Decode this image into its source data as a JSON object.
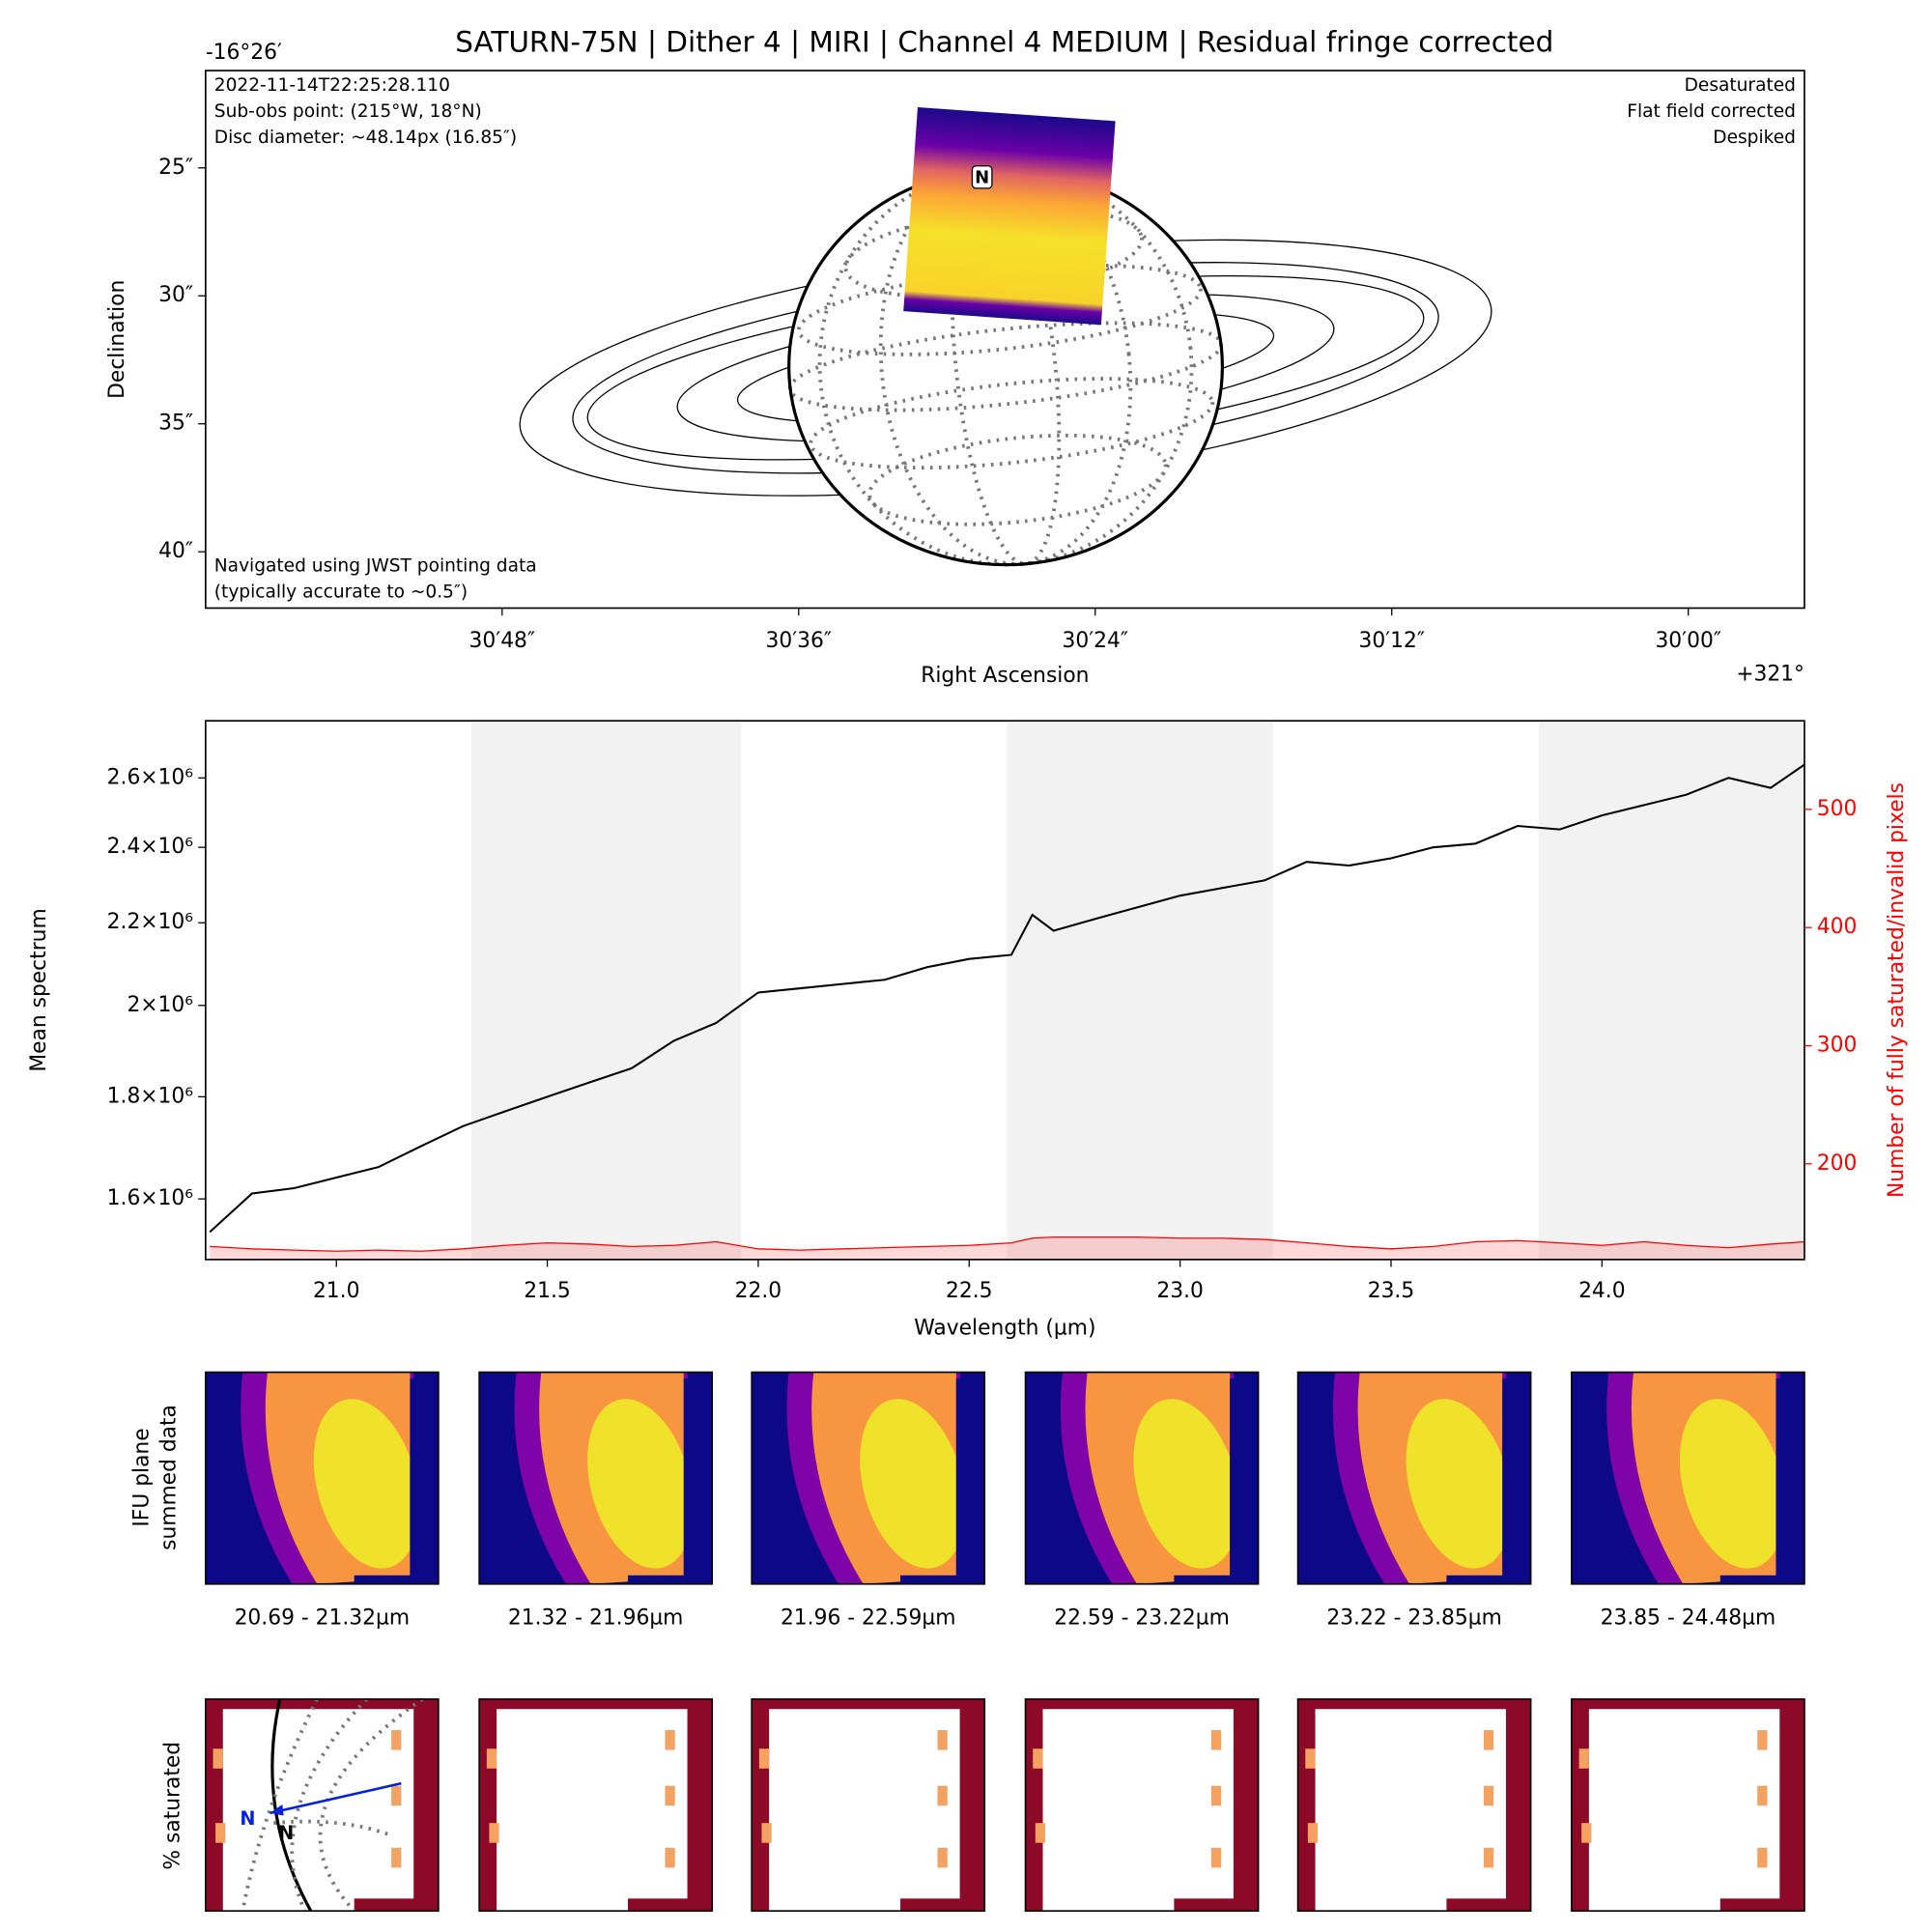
{
  "title": "SATURN-75N  |  Dither 4  |  MIRI  |  Channel 4 MEDIUM  |  Residual fringe corrected",
  "chart_data": [
    {
      "type": "sky",
      "xlabel": "Right Ascension",
      "ylabel": "Declination",
      "x_offset_label": "+321°",
      "y_offset_label": "-16°26′",
      "xlim": [
        60,
        -4.7
      ],
      "xticks": [
        {
          "value": 48,
          "label": "30′48″"
        },
        {
          "value": 36,
          "label": "30′36″"
        },
        {
          "value": 24,
          "label": "30′24″"
        },
        {
          "value": 12,
          "label": "30′12″"
        },
        {
          "value": 0,
          "label": "30′00″"
        }
      ],
      "ylim": [
        42.2,
        21.2
      ],
      "yticks": [
        {
          "value": 25,
          "label": "25″"
        },
        {
          "value": 30,
          "label": "30″"
        },
        {
          "value": 35,
          "label": "35″"
        },
        {
          "value": 40,
          "label": "40″"
        }
      ],
      "annotations_top_left": [
        "2022-11-14T22:25:28.110",
        "Sub-obs point: (215°W, 18°N)",
        "Disc diameter: ~48.14px (16.85″)"
      ],
      "annotations_top_right": [
        "Desaturated",
        "Flat field corrected",
        "Despiked"
      ],
      "annotations_bottom_left": [
        "Navigated using JWST pointing data",
        "(typically accurate to ~0.5″)"
      ],
      "marker_label": "N"
    },
    {
      "type": "line",
      "xlabel": "Wavelength (µm)",
      "ylabel": "Mean spectrum",
      "y2label": "Number of fully saturated/invalid pixels",
      "log_y": true,
      "y2color": "#ff0000",
      "xlim": [
        20.69,
        24.48
      ],
      "xticks": [
        {
          "value": 21,
          "label": "21.0"
        },
        21.5,
        {
          "value": 22,
          "label": "22.0"
        },
        22.5,
        {
          "value": 23,
          "label": "23.0"
        },
        23.5,
        {
          "value": 24,
          "label": "24.0"
        }
      ],
      "ylim": [
        1492000,
        2777000
      ],
      "yticks": [
        {
          "value": 1600000,
          "label": "1.6×10⁶"
        },
        {
          "value": 1800000,
          "label": "1.8×10⁶"
        },
        {
          "value": 2000000,
          "label": "2×10⁶"
        },
        {
          "value": 2200000,
          "label": "2.2×10⁶"
        },
        {
          "value": 2400000,
          "label": "2.4×10⁶"
        },
        {
          "value": 2600000,
          "label": "2.6×10⁶"
        }
      ],
      "y2lim": [
        119,
        575
      ],
      "y2ticks": [
        200,
        300,
        400,
        500
      ],
      "shaded_ranges": [
        [
          21.32,
          21.96
        ],
        [
          22.59,
          23.22
        ],
        [
          23.85,
          24.48
        ]
      ],
      "x": [
        20.7,
        20.8,
        20.9,
        21.0,
        21.1,
        21.2,
        21.3,
        21.4,
        21.5,
        21.6,
        21.7,
        21.8,
        21.9,
        22.0,
        22.1,
        22.2,
        22.3,
        22.4,
        22.5,
        22.6,
        22.65,
        22.7,
        22.8,
        22.9,
        23.0,
        23.1,
        23.2,
        23.3,
        23.4,
        23.5,
        23.6,
        23.7,
        23.8,
        23.9,
        24.0,
        24.1,
        24.2,
        24.3,
        24.4,
        24.48
      ],
      "series": [
        {
          "color": "#000000",
          "values": [
            1540000,
            1610000,
            1620000,
            1640000,
            1660000,
            1700000,
            1740000,
            1770000,
            1800000,
            1830000,
            1860000,
            1920000,
            1960000,
            2030000,
            2040000,
            2050000,
            2060000,
            2090000,
            2110000,
            2120000,
            2220000,
            2180000,
            2210000,
            2240000,
            2270000,
            2290000,
            2310000,
            2360000,
            2350000,
            2370000,
            2400000,
            2410000,
            2460000,
            2450000,
            2490000,
            2520000,
            2550000,
            2600000,
            2570000,
            2640000
          ]
        },
        {
          "color": "#ff0000",
          "axis": "y2",
          "fill": true,
          "values": [
            130,
            128,
            127,
            126,
            127,
            126,
            128,
            131,
            133,
            132,
            130,
            131,
            134,
            128,
            127,
            128,
            129,
            130,
            131,
            133,
            137,
            138,
            138,
            138,
            137,
            137,
            136,
            133,
            130,
            128,
            130,
            134,
            135,
            133,
            131,
            134,
            131,
            129,
            132,
            134
          ]
        }
      ]
    },
    {
      "type": "image-grid",
      "row_labels": [
        [
          "IFU plane",
          "summed data"
        ],
        [
          "% saturated"
        ]
      ],
      "panel_labels": [
        "20.69 - 21.32µm",
        "21.32 - 21.96µm",
        "21.96 - 22.59µm",
        "22.59 - 23.22µm",
        "23.22 - 23.85µm",
        "23.85 - 24.48µm"
      ],
      "marker_label": "N"
    }
  ]
}
